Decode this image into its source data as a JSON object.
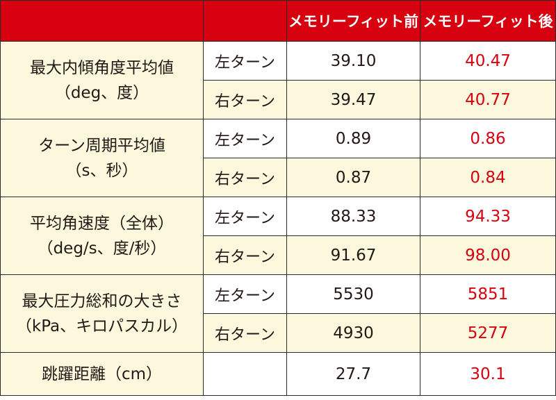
{
  "colors": {
    "header_bg": "#d7000f",
    "header_text": "#ffffff",
    "highlight_value": "#d7000f",
    "shaded_cell_bg": "#fbf8de"
  },
  "header": {
    "empty1": "",
    "empty2": "",
    "before": "メモリーフィット前",
    "after": "メモリーフィット後"
  },
  "rows": [
    {
      "category_line1": "最大内傾角度平均値",
      "category_line2": "（deg、度）",
      "items": [
        {
          "turn": "左ターン",
          "before": "39.10",
          "after": "40.47"
        },
        {
          "turn": "右ターン",
          "before": "39.47",
          "after": "40.77"
        }
      ]
    },
    {
      "category_line1": "ターン周期平均値",
      "category_line2": "（s、秒）",
      "items": [
        {
          "turn": "左ターン",
          "before": "0.89",
          "after": "0.86"
        },
        {
          "turn": "右ターン",
          "before": "0.87",
          "after": "0.84"
        }
      ]
    },
    {
      "category_line1": "平均角速度（全体）",
      "category_line2": "（deg/s、度/秒）",
      "items": [
        {
          "turn": "左ターン",
          "before": "88.33",
          "after": "94.33"
        },
        {
          "turn": "右ターン",
          "before": "91.67",
          "after": "98.00"
        }
      ]
    },
    {
      "category_line1": "最大圧力総和の大きさ",
      "category_line2": "（kPa、キロパスカル）",
      "items": [
        {
          "turn": "左ターン",
          "before": "5530",
          "after": "5851"
        },
        {
          "turn": "右ターン",
          "before": "4930",
          "after": "5277"
        }
      ]
    }
  ],
  "jump": {
    "category": "跳躍距離（cm）",
    "turn": "",
    "before": "27.7",
    "after": "30.1"
  }
}
